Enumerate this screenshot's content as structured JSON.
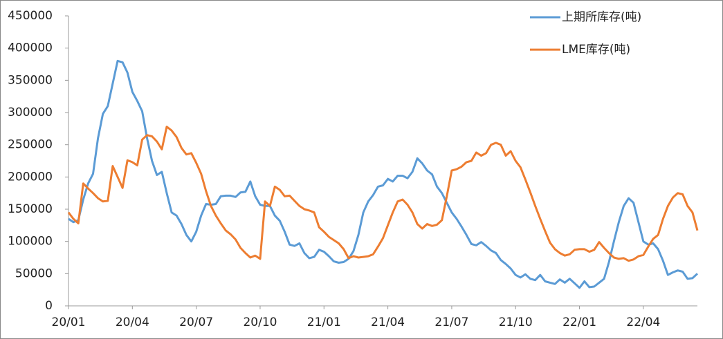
{
  "chart_data": {
    "type": "line",
    "categories": [
      "20/01",
      null,
      null,
      null,
      null,
      null,
      null,
      null,
      null,
      null,
      null,
      null,
      null,
      "20/04",
      null,
      null,
      null,
      null,
      null,
      null,
      null,
      null,
      null,
      null,
      null,
      null,
      "20/07",
      null,
      null,
      null,
      null,
      null,
      null,
      null,
      null,
      null,
      null,
      null,
      null,
      "20/10",
      null,
      null,
      null,
      null,
      null,
      null,
      null,
      null,
      null,
      null,
      null,
      null,
      "21/01",
      null,
      null,
      null,
      null,
      null,
      null,
      null,
      null,
      null,
      null,
      null,
      null,
      "21/04",
      null,
      null,
      null,
      null,
      null,
      null,
      null,
      null,
      null,
      null,
      null,
      null,
      "21/07",
      null,
      null,
      null,
      null,
      null,
      null,
      null,
      null,
      null,
      null,
      null,
      null,
      "21/10",
      null,
      null,
      null,
      null,
      null,
      null,
      null,
      null,
      null,
      null,
      null,
      null,
      "22/01",
      null,
      null,
      null,
      null,
      null,
      null,
      null,
      null,
      null,
      null,
      null,
      null,
      "22/04",
      null,
      null,
      null,
      null,
      null,
      null,
      null,
      null,
      null,
      null,
      null
    ],
    "series": [
      {
        "name": "上期所库存(吨)",
        "color": "#5b9bd5",
        "values": [
          135000,
          130000,
          133000,
          165000,
          190000,
          205000,
          260000,
          298000,
          310000,
          345000,
          380000,
          378000,
          362000,
          332000,
          318000,
          302000,
          260000,
          225000,
          203000,
          208000,
          175000,
          145000,
          140000,
          127000,
          110000,
          100000,
          115000,
          140000,
          158000,
          157000,
          158000,
          170000,
          171000,
          171000,
          169000,
          176000,
          177000,
          193000,
          170000,
          157000,
          155000,
          155000,
          140000,
          132000,
          115000,
          95000,
          93000,
          97000,
          82000,
          74000,
          76000,
          87000,
          84000,
          77000,
          69000,
          67000,
          68000,
          73000,
          85000,
          110000,
          145000,
          162000,
          172000,
          185000,
          187000,
          197000,
          193000,
          202000,
          202000,
          198000,
          208000,
          229000,
          221000,
          210000,
          204000,
          185000,
          175000,
          160000,
          145000,
          135000,
          123000,
          110000,
          96000,
          94000,
          99000,
          93000,
          86000,
          82000,
          71000,
          65000,
          58000,
          48000,
          44000,
          49000,
          42000,
          40000,
          48000,
          38000,
          36000,
          34000,
          41000,
          36000,
          42000,
          35000,
          28000,
          38000,
          29000,
          30000,
          36000,
          42000,
          68000,
          100000,
          130000,
          155000,
          167000,
          160000,
          130000,
          100000,
          95000,
          97000,
          88000,
          70000,
          48000,
          52000,
          55000,
          53000,
          42000,
          43000,
          50000
        ]
      },
      {
        "name": "LME库存(吨)",
        "color": "#ed7d31",
        "values": [
          145000,
          135000,
          128000,
          190000,
          182000,
          175000,
          167000,
          162000,
          163000,
          217000,
          200000,
          183000,
          226000,
          223000,
          218000,
          258000,
          265000,
          263000,
          255000,
          243000,
          278000,
          272000,
          262000,
          245000,
          235000,
          237000,
          222000,
          205000,
          178000,
          155000,
          140000,
          128000,
          117000,
          111000,
          103000,
          90000,
          82000,
          75000,
          78000,
          73000,
          162000,
          155000,
          185000,
          180000,
          170000,
          171000,
          163000,
          155000,
          150000,
          148000,
          145000,
          122000,
          115000,
          107000,
          102000,
          97000,
          88000,
          74000,
          77000,
          75000,
          76000,
          77000,
          80000,
          92000,
          105000,
          125000,
          145000,
          162000,
          165000,
          157000,
          145000,
          127000,
          120000,
          127000,
          124000,
          126000,
          133000,
          170000,
          210000,
          212000,
          216000,
          223000,
          225000,
          238000,
          233000,
          237000,
          250000,
          253000,
          250000,
          233000,
          240000,
          225000,
          215000,
          196000,
          176000,
          155000,
          135000,
          116000,
          98000,
          88000,
          82000,
          78000,
          80000,
          87000,
          88000,
          88000,
          84000,
          87000,
          99000,
          90000,
          82000,
          75000,
          73000,
          74000,
          70000,
          72000,
          77000,
          79000,
          92000,
          104000,
          110000,
          135000,
          155000,
          168000,
          175000,
          173000,
          155000,
          145000,
          117000
        ]
      }
    ],
    "ylim": [
      0,
      450000
    ],
    "yticks": [
      0,
      50000,
      100000,
      150000,
      200000,
      250000,
      300000,
      350000,
      400000,
      450000
    ],
    "grid": false,
    "legend": "top-right"
  }
}
